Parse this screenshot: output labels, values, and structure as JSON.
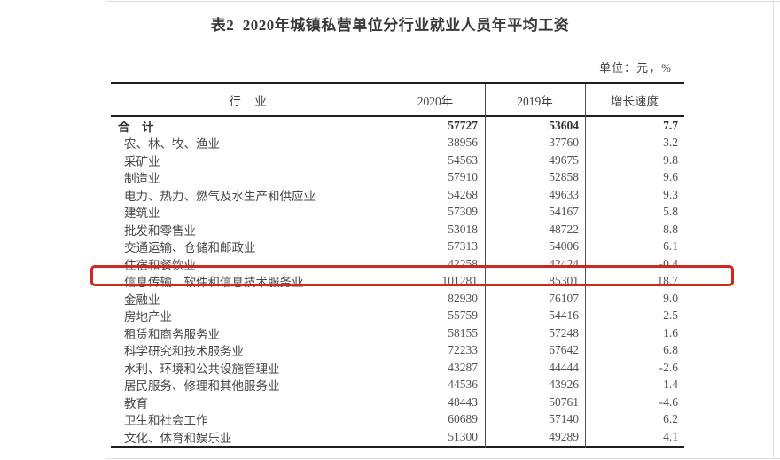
{
  "page": {
    "title": "表2  2020年城镇私营单位分行业就业人员年平均工资",
    "unit_note": "单位：元，%"
  },
  "table": {
    "columns": [
      "行　业",
      "2020年",
      "2019年",
      "增长速度"
    ],
    "rows": [
      {
        "industry": "合　计",
        "y2020": "57727",
        "y2019": "53604",
        "growth": "7.7",
        "bold": true
      },
      {
        "industry": "农、林、牧、渔业",
        "y2020": "38956",
        "y2019": "37760",
        "growth": "3.2"
      },
      {
        "industry": "采矿业",
        "y2020": "54563",
        "y2019": "49675",
        "growth": "9.8"
      },
      {
        "industry": "制造业",
        "y2020": "57910",
        "y2019": "52858",
        "growth": "9.6"
      },
      {
        "industry": "电力、热力、燃气及水生产和供应业",
        "y2020": "54268",
        "y2019": "49633",
        "growth": "9.3"
      },
      {
        "industry": "建筑业",
        "y2020": "57309",
        "y2019": "54167",
        "growth": "5.8"
      },
      {
        "industry": "批发和零售业",
        "y2020": "53018",
        "y2019": "48722",
        "growth": "8.8"
      },
      {
        "industry": "交通运输、仓储和邮政业",
        "y2020": "57313",
        "y2019": "54006",
        "growth": "6.1"
      },
      {
        "industry": "住宿和餐饮业",
        "y2020": "42258",
        "y2019": "42424",
        "growth": "-0.4"
      },
      {
        "industry": "信息传输、软件和信息技术服务业",
        "y2020": "101281",
        "y2019": "85301",
        "growth": "18.7",
        "highlighted": true
      },
      {
        "industry": "金融业",
        "y2020": "82930",
        "y2019": "76107",
        "growth": "9.0"
      },
      {
        "industry": "房地产业",
        "y2020": "55759",
        "y2019": "54416",
        "growth": "2.5"
      },
      {
        "industry": "租赁和商务服务业",
        "y2020": "58155",
        "y2019": "57248",
        "growth": "1.6"
      },
      {
        "industry": "科学研究和技术服务业",
        "y2020": "72233",
        "y2019": "67642",
        "growth": "6.8"
      },
      {
        "industry": "水利、环境和公共设施管理业",
        "y2020": "43287",
        "y2019": "44444",
        "growth": "-2.6"
      },
      {
        "industry": "居民服务、修理和其他服务业",
        "y2020": "44536",
        "y2019": "43926",
        "growth": "1.4"
      },
      {
        "industry": "教育",
        "y2020": "48443",
        "y2019": "50761",
        "growth": "-4.6"
      },
      {
        "industry": "卫生和社会工作",
        "y2020": "60689",
        "y2019": "57140",
        "growth": "6.2"
      },
      {
        "industry": "文化、体育和娱乐业",
        "y2020": "51300",
        "y2019": "49289",
        "growth": "4.1"
      }
    ]
  },
  "colors": {
    "highlight_border": "#cc2a1e",
    "heavy_border": "#1f1f1f",
    "text": "#3e3e3e"
  }
}
